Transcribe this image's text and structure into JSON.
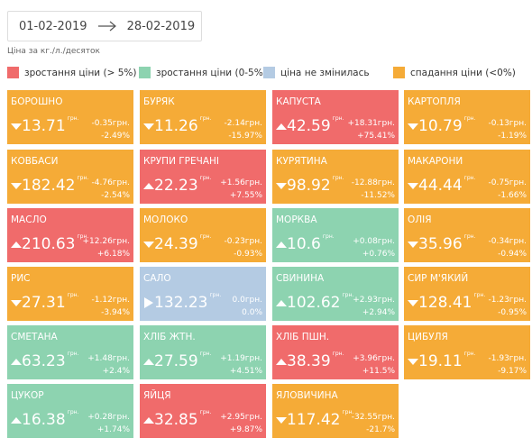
{
  "date_from": "01-02-2019",
  "date_to": "28-02-2019",
  "price_note": "Ціна за кг./л./десяток",
  "legend": [
    {
      "label": "зростання ціни (> 5%)",
      "color": "#f06b6b"
    },
    {
      "label": "зростання ціни (0-5%)",
      "color": "#8dd3b0"
    },
    {
      "label": "ціна не змінилась",
      "color": "#b4cbe3"
    },
    {
      "label": "спадання ціни (<0%)",
      "color": "#f5ab37"
    }
  ],
  "unit": "грн.",
  "tiles": [
    {
      "name": "БОРОШНО",
      "category": 3,
      "trend": "down",
      "price": 13.71,
      "change": "-0.35грн.",
      "percent": "-2.49%"
    },
    {
      "name": "БУРЯК",
      "category": 3,
      "trend": "down",
      "price": 11.26,
      "change": "-2.14грн.",
      "percent": "-15.97%"
    },
    {
      "name": "КАПУСТА",
      "category": 0,
      "trend": "up",
      "price": 42.59,
      "change": "+18.31грн.",
      "percent": "+75.41%"
    },
    {
      "name": "КАРТОПЛЯ",
      "category": 3,
      "trend": "down",
      "price": 10.79,
      "change": "-0.13грн.",
      "percent": "-1.19%"
    },
    {
      "name": "КОВБАСИ",
      "category": 3,
      "trend": "down",
      "price": 182.42,
      "change": "-4.76грн.",
      "percent": "-2.54%"
    },
    {
      "name": "КРУПИ ГРЕЧАНІ",
      "category": 0,
      "trend": "up",
      "price": 22.23,
      "change": "+1.56грн.",
      "percent": "+7.55%"
    },
    {
      "name": "КУРЯТИНА",
      "category": 3,
      "trend": "down",
      "price": 98.92,
      "change": "-12.88грн.",
      "percent": "-11.52%"
    },
    {
      "name": "МАКАРОНИ",
      "category": 3,
      "trend": "down",
      "price": 44.44,
      "change": "-0.75грн.",
      "percent": "-1.66%"
    },
    {
      "name": "МАСЛО",
      "category": 0,
      "trend": "up",
      "price": 210.63,
      "change": "+12.26грн.",
      "percent": "+6.18%"
    },
    {
      "name": "МОЛОКО",
      "category": 3,
      "trend": "down",
      "price": 24.39,
      "change": "-0.23грн.",
      "percent": "-0.93%"
    },
    {
      "name": "МОРКВА",
      "category": 1,
      "trend": "up",
      "price": 10.6,
      "change": "+0.08грн.",
      "percent": "+0.76%"
    },
    {
      "name": "ОЛІЯ",
      "category": 3,
      "trend": "down",
      "price": 35.96,
      "change": "-0.34грн.",
      "percent": "-0.94%"
    },
    {
      "name": "РИС",
      "category": 3,
      "trend": "down",
      "price": 27.31,
      "change": "-1.12грн.",
      "percent": "-3.94%"
    },
    {
      "name": "САЛО",
      "category": 2,
      "trend": "flat",
      "price": 132.23,
      "change": "0.0грн.",
      "percent": "0.0%"
    },
    {
      "name": "СВИНИНА",
      "category": 1,
      "trend": "up",
      "price": 102.62,
      "change": "+2.93грн.",
      "percent": "+2.94%"
    },
    {
      "name": "СИР М'ЯКИЙ",
      "category": 3,
      "trend": "down",
      "price": 128.41,
      "change": "-1.23грн.",
      "percent": "-0.95%"
    },
    {
      "name": "СМЕТАНА",
      "category": 1,
      "trend": "up",
      "price": 63.23,
      "change": "+1.48грн.",
      "percent": "+2.4%"
    },
    {
      "name": "ХЛІБ ЖТН.",
      "category": 1,
      "trend": "up",
      "price": 27.59,
      "change": "+1.19грн.",
      "percent": "+4.51%"
    },
    {
      "name": "ХЛІБ ПШН.",
      "category": 0,
      "trend": "up",
      "price": 38.39,
      "change": "+3.96грн.",
      "percent": "+11.5%"
    },
    {
      "name": "ЦИБУЛЯ",
      "category": 3,
      "trend": "down",
      "price": 19.11,
      "change": "-1.93грн.",
      "percent": "-9.17%"
    },
    {
      "name": "ЦУКОР",
      "category": 1,
      "trend": "up",
      "price": 16.38,
      "change": "+0.28грн.",
      "percent": "+1.74%"
    },
    {
      "name": "ЯЙЦЯ",
      "category": 0,
      "trend": "up",
      "price": 32.85,
      "change": "+2.95грн.",
      "percent": "+9.87%"
    },
    {
      "name": "ЯЛОВИЧИНА",
      "category": 3,
      "trend": "down",
      "price": 117.42,
      "change": "-32.55грн.",
      "percent": "-21.7%"
    }
  ]
}
